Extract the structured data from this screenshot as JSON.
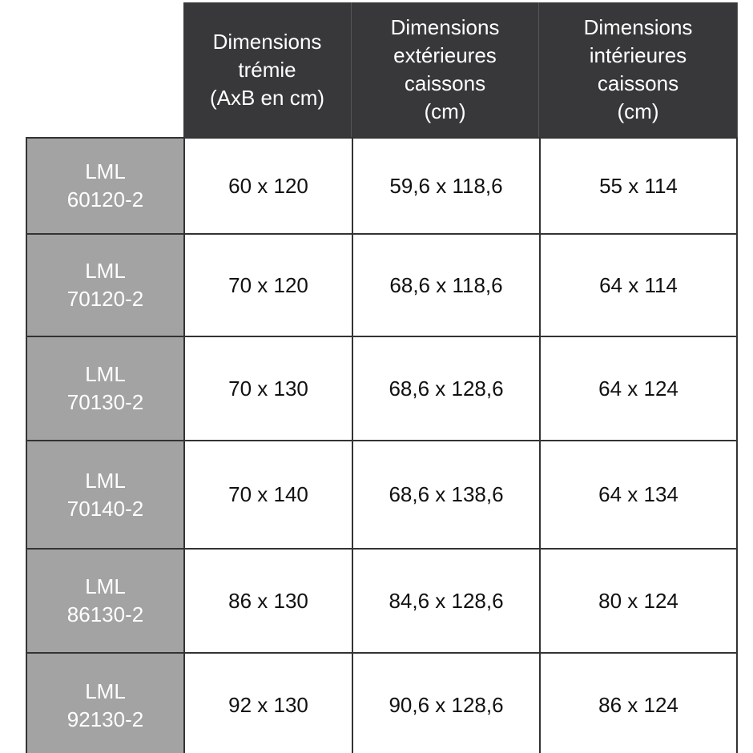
{
  "headers": [
    "Dimensions\ntrémie\n(AxB en cm)",
    "Dimensions\nextérieures\ncaissons\n(cm)",
    "Dimensions\nintérieures\ncaissons\n(cm)"
  ],
  "rows": [
    {
      "model_line1": "LML",
      "model_line2": "60120-2",
      "values": [
        "60 x 120",
        "59,6 x 118,6",
        "55 x 114"
      ]
    },
    {
      "model_line1": "LML",
      "model_line2": "70120-2",
      "values": [
        "70 x 120",
        "68,6 x 118,6",
        "64 x 114"
      ]
    },
    {
      "model_line1": "LML",
      "model_line2": "70130-2",
      "values": [
        "70 x 130",
        "68,6 x 128,6",
        "64 x 124"
      ]
    },
    {
      "model_line1": "LML",
      "model_line2": "70140-2",
      "values": [
        "70 x 140",
        "68,6 x 138,6",
        "64 x 134"
      ]
    },
    {
      "model_line1": "LML",
      "model_line2": "86130-2",
      "values": [
        "86 x 130",
        "84,6 x 128,6",
        "80 x 124"
      ]
    },
    {
      "model_line1": "LML",
      "model_line2": "92130-2",
      "values": [
        "92 x 130",
        "90,6 x 128,6",
        "86 x 124"
      ]
    }
  ],
  "colors": {
    "header_bg": "#38383a",
    "label_bg": "#a3a3a3"
  }
}
